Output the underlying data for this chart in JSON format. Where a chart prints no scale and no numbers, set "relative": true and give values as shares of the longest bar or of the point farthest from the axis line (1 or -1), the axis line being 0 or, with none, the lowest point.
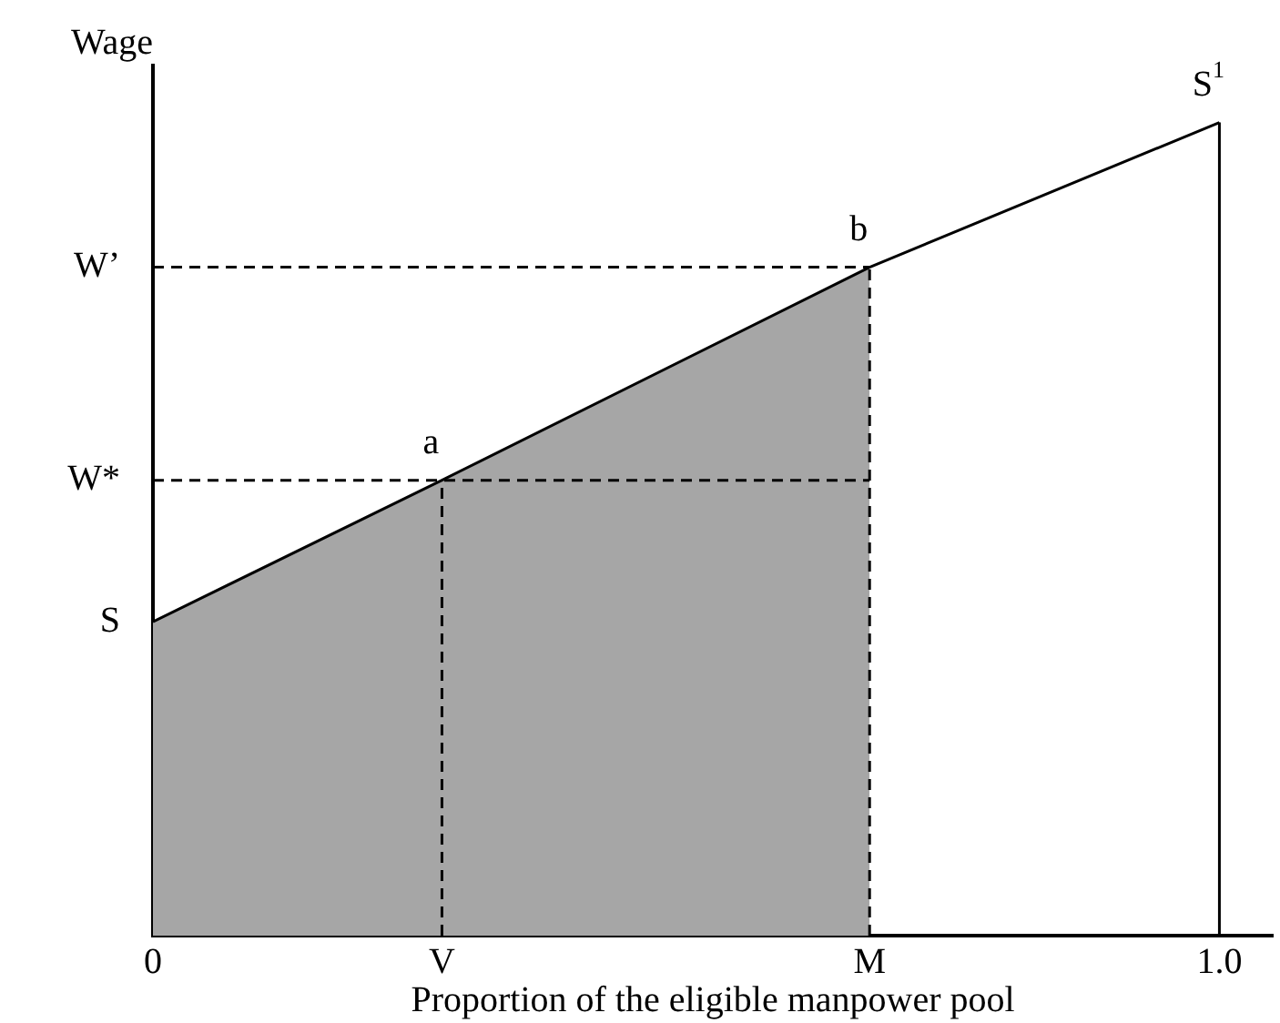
{
  "chart_data": {
    "type": "line",
    "relative": true,
    "xlabel": "Proportion of the eligible manpower pool",
    "ylabel": "Wage",
    "xlim": [
      0,
      1.05
    ],
    "xticks": [
      0,
      {
        "value": 0.271,
        "label": "V"
      },
      {
        "value": 0.672,
        "label": "M"
      },
      {
        "value": 1,
        "label": "1.0"
      }
    ],
    "grid": false,
    "legend": false,
    "tick_labels": "x",
    "marker": "none",
    "series": [
      {
        "type": "area",
        "color": "#a6a6a6",
        "x": [
          0,
          0.271,
          0.672
        ],
        "values": [
          0.386,
          0.56,
          0.822
        ]
      },
      {
        "color": "#000000",
        "x": [
          0,
          0.271,
          0.672,
          1
        ],
        "values": [
          0.386,
          0.56,
          0.822,
          1
        ],
        "line_style": "solid"
      },
      {
        "color": "#000000",
        "x": [
          0,
          0.672
        ],
        "values": [
          0.822,
          0.822
        ],
        "line_style": "dashed"
      },
      {
        "color": "#000000",
        "x": [
          0,
          0.672
        ],
        "values": [
          0.56,
          0.56
        ],
        "line_style": "dashed"
      },
      {
        "color": "#000000",
        "x": [
          0.271,
          0.271
        ],
        "values": [
          0,
          0.56
        ],
        "line_style": "dashed"
      },
      {
        "color": "#000000",
        "x": [
          0.672,
          0.672
        ],
        "values": [
          0,
          0.822
        ],
        "line_style": "dashed"
      },
      {
        "color": "#000000",
        "x": [
          1,
          1
        ],
        "values": [
          0,
          1
        ],
        "line_style": "solid"
      }
    ],
    "annotations": [
      {
        "text": "S",
        "x": 0,
        "y": 0.386
      },
      {
        "text": "W*",
        "x": 0,
        "y": 0.56
      },
      {
        "text": "W’",
        "x": 0,
        "y": 0.822
      },
      {
        "text": "a",
        "x": 0.271,
        "y": 0.56
      },
      {
        "text": "b",
        "x": 0.672,
        "y": 0.822
      },
      {
        "text": "S$^{1}$",
        "x": 1,
        "y": 1
      }
    ]
  }
}
